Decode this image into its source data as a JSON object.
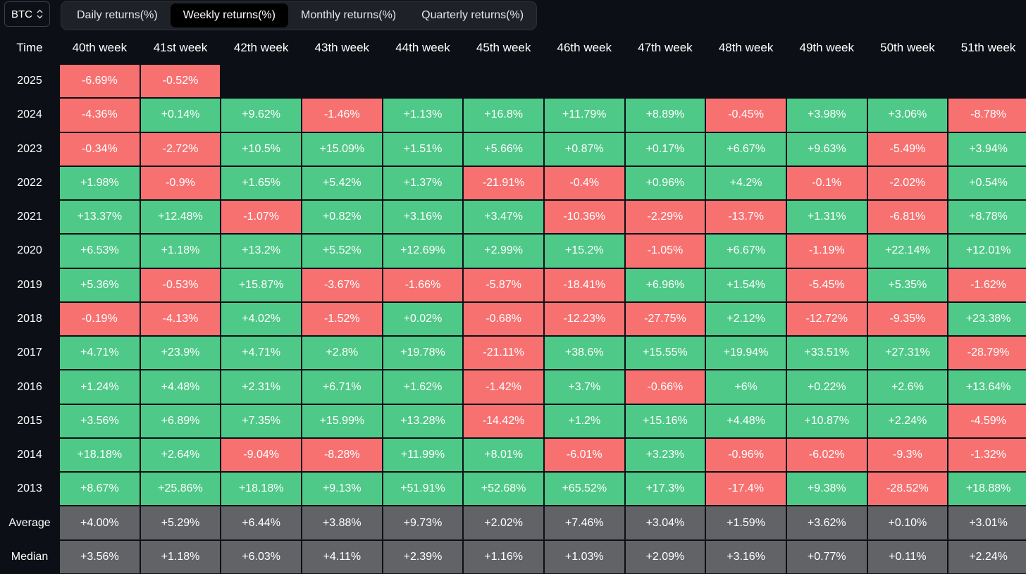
{
  "asset_select": {
    "value": "BTC"
  },
  "tabs": [
    {
      "label": "Daily returns(%)",
      "active": false
    },
    {
      "label": "Weekly returns(%)",
      "active": true
    },
    {
      "label": "Monthly returns(%)",
      "active": false
    },
    {
      "label": "Quarterly returns(%)",
      "active": false
    }
  ],
  "colors": {
    "positive": "#4ec988",
    "negative": "#f87171",
    "summary": "#626367",
    "background": "#0c0f15"
  },
  "table": {
    "time_header": "Time",
    "columns": [
      "40th week",
      "41st week",
      "42th week",
      "43th week",
      "44th week",
      "45th week",
      "46th week",
      "47th week",
      "48th week",
      "49th week",
      "50th week",
      "51th week"
    ],
    "rows": [
      {
        "label": "2025",
        "values": [
          "-6.69%",
          "-0.52%",
          "",
          "",
          "",
          "",
          "",
          "",
          "",
          "",
          "",
          ""
        ]
      },
      {
        "label": "2024",
        "values": [
          "-4.36%",
          "+0.14%",
          "+9.62%",
          "-1.46%",
          "+1.13%",
          "+16.8%",
          "+11.79%",
          "+8.89%",
          "-0.45%",
          "+3.98%",
          "+3.06%",
          "-8.78%"
        ]
      },
      {
        "label": "2023",
        "values": [
          "-0.34%",
          "-2.72%",
          "+10.5%",
          "+15.09%",
          "+1.51%",
          "+5.66%",
          "+0.87%",
          "+0.17%",
          "+6.67%",
          "+9.63%",
          "-5.49%",
          "+3.94%"
        ]
      },
      {
        "label": "2022",
        "values": [
          "+1.98%",
          "-0.9%",
          "+1.65%",
          "+5.42%",
          "+1.37%",
          "-21.91%",
          "-0.4%",
          "+0.96%",
          "+4.2%",
          "-0.1%",
          "-2.02%",
          "+0.54%"
        ]
      },
      {
        "label": "2021",
        "values": [
          "+13.37%",
          "+12.48%",
          "-1.07%",
          "+0.82%",
          "+3.16%",
          "+3.47%",
          "-10.36%",
          "-2.29%",
          "-13.7%",
          "+1.31%",
          "-6.81%",
          "+8.78%"
        ]
      },
      {
        "label": "2020",
        "values": [
          "+6.53%",
          "+1.18%",
          "+13.2%",
          "+5.52%",
          "+12.69%",
          "+2.99%",
          "+15.2%",
          "-1.05%",
          "+6.67%",
          "-1.19%",
          "+22.14%",
          "+12.01%"
        ]
      },
      {
        "label": "2019",
        "values": [
          "+5.36%",
          "-0.53%",
          "+15.87%",
          "-3.67%",
          "-1.66%",
          "-5.87%",
          "-18.41%",
          "+6.96%",
          "+1.54%",
          "-5.45%",
          "+5.35%",
          "-1.62%"
        ]
      },
      {
        "label": "2018",
        "values": [
          "-0.19%",
          "-4.13%",
          "+4.02%",
          "-1.52%",
          "+0.02%",
          "-0.68%",
          "-12.23%",
          "-27.75%",
          "+2.12%",
          "-12.72%",
          "-9.35%",
          "+23.38%"
        ]
      },
      {
        "label": "2017",
        "values": [
          "+4.71%",
          "+23.9%",
          "+4.71%",
          "+2.8%",
          "+19.78%",
          "-21.11%",
          "+38.6%",
          "+15.55%",
          "+19.94%",
          "+33.51%",
          "+27.31%",
          "-28.79%"
        ]
      },
      {
        "label": "2016",
        "values": [
          "+1.24%",
          "+4.48%",
          "+2.31%",
          "+6.71%",
          "+1.62%",
          "-1.42%",
          "+3.7%",
          "-0.66%",
          "+6%",
          "+0.22%",
          "+2.6%",
          "+13.64%"
        ]
      },
      {
        "label": "2015",
        "values": [
          "+3.56%",
          "+6.89%",
          "+7.35%",
          "+15.99%",
          "+13.28%",
          "-14.42%",
          "+1.2%",
          "+15.16%",
          "+4.48%",
          "+10.87%",
          "+2.24%",
          "-4.59%"
        ]
      },
      {
        "label": "2014",
        "values": [
          "+18.18%",
          "+2.64%",
          "-9.04%",
          "-8.28%",
          "+11.99%",
          "+8.01%",
          "-6.01%",
          "+3.23%",
          "-0.96%",
          "-6.02%",
          "-9.3%",
          "-1.32%"
        ]
      },
      {
        "label": "2013",
        "values": [
          "+8.67%",
          "+25.86%",
          "+18.18%",
          "+9.13%",
          "+51.91%",
          "+52.68%",
          "+65.52%",
          "+17.3%",
          "-17.4%",
          "+9.38%",
          "-28.52%",
          "+18.88%"
        ]
      }
    ],
    "summary": [
      {
        "label": "Average",
        "values": [
          "+4.00%",
          "+5.29%",
          "+6.44%",
          "+3.88%",
          "+9.73%",
          "+2.02%",
          "+7.46%",
          "+3.04%",
          "+1.59%",
          "+3.62%",
          "+0.10%",
          "+3.01%"
        ]
      },
      {
        "label": "Median",
        "values": [
          "+3.56%",
          "+1.18%",
          "+6.03%",
          "+4.11%",
          "+2.39%",
          "+1.16%",
          "+1.03%",
          "+2.09%",
          "+3.16%",
          "+0.77%",
          "+0.11%",
          "+2.24%"
        ]
      }
    ]
  }
}
